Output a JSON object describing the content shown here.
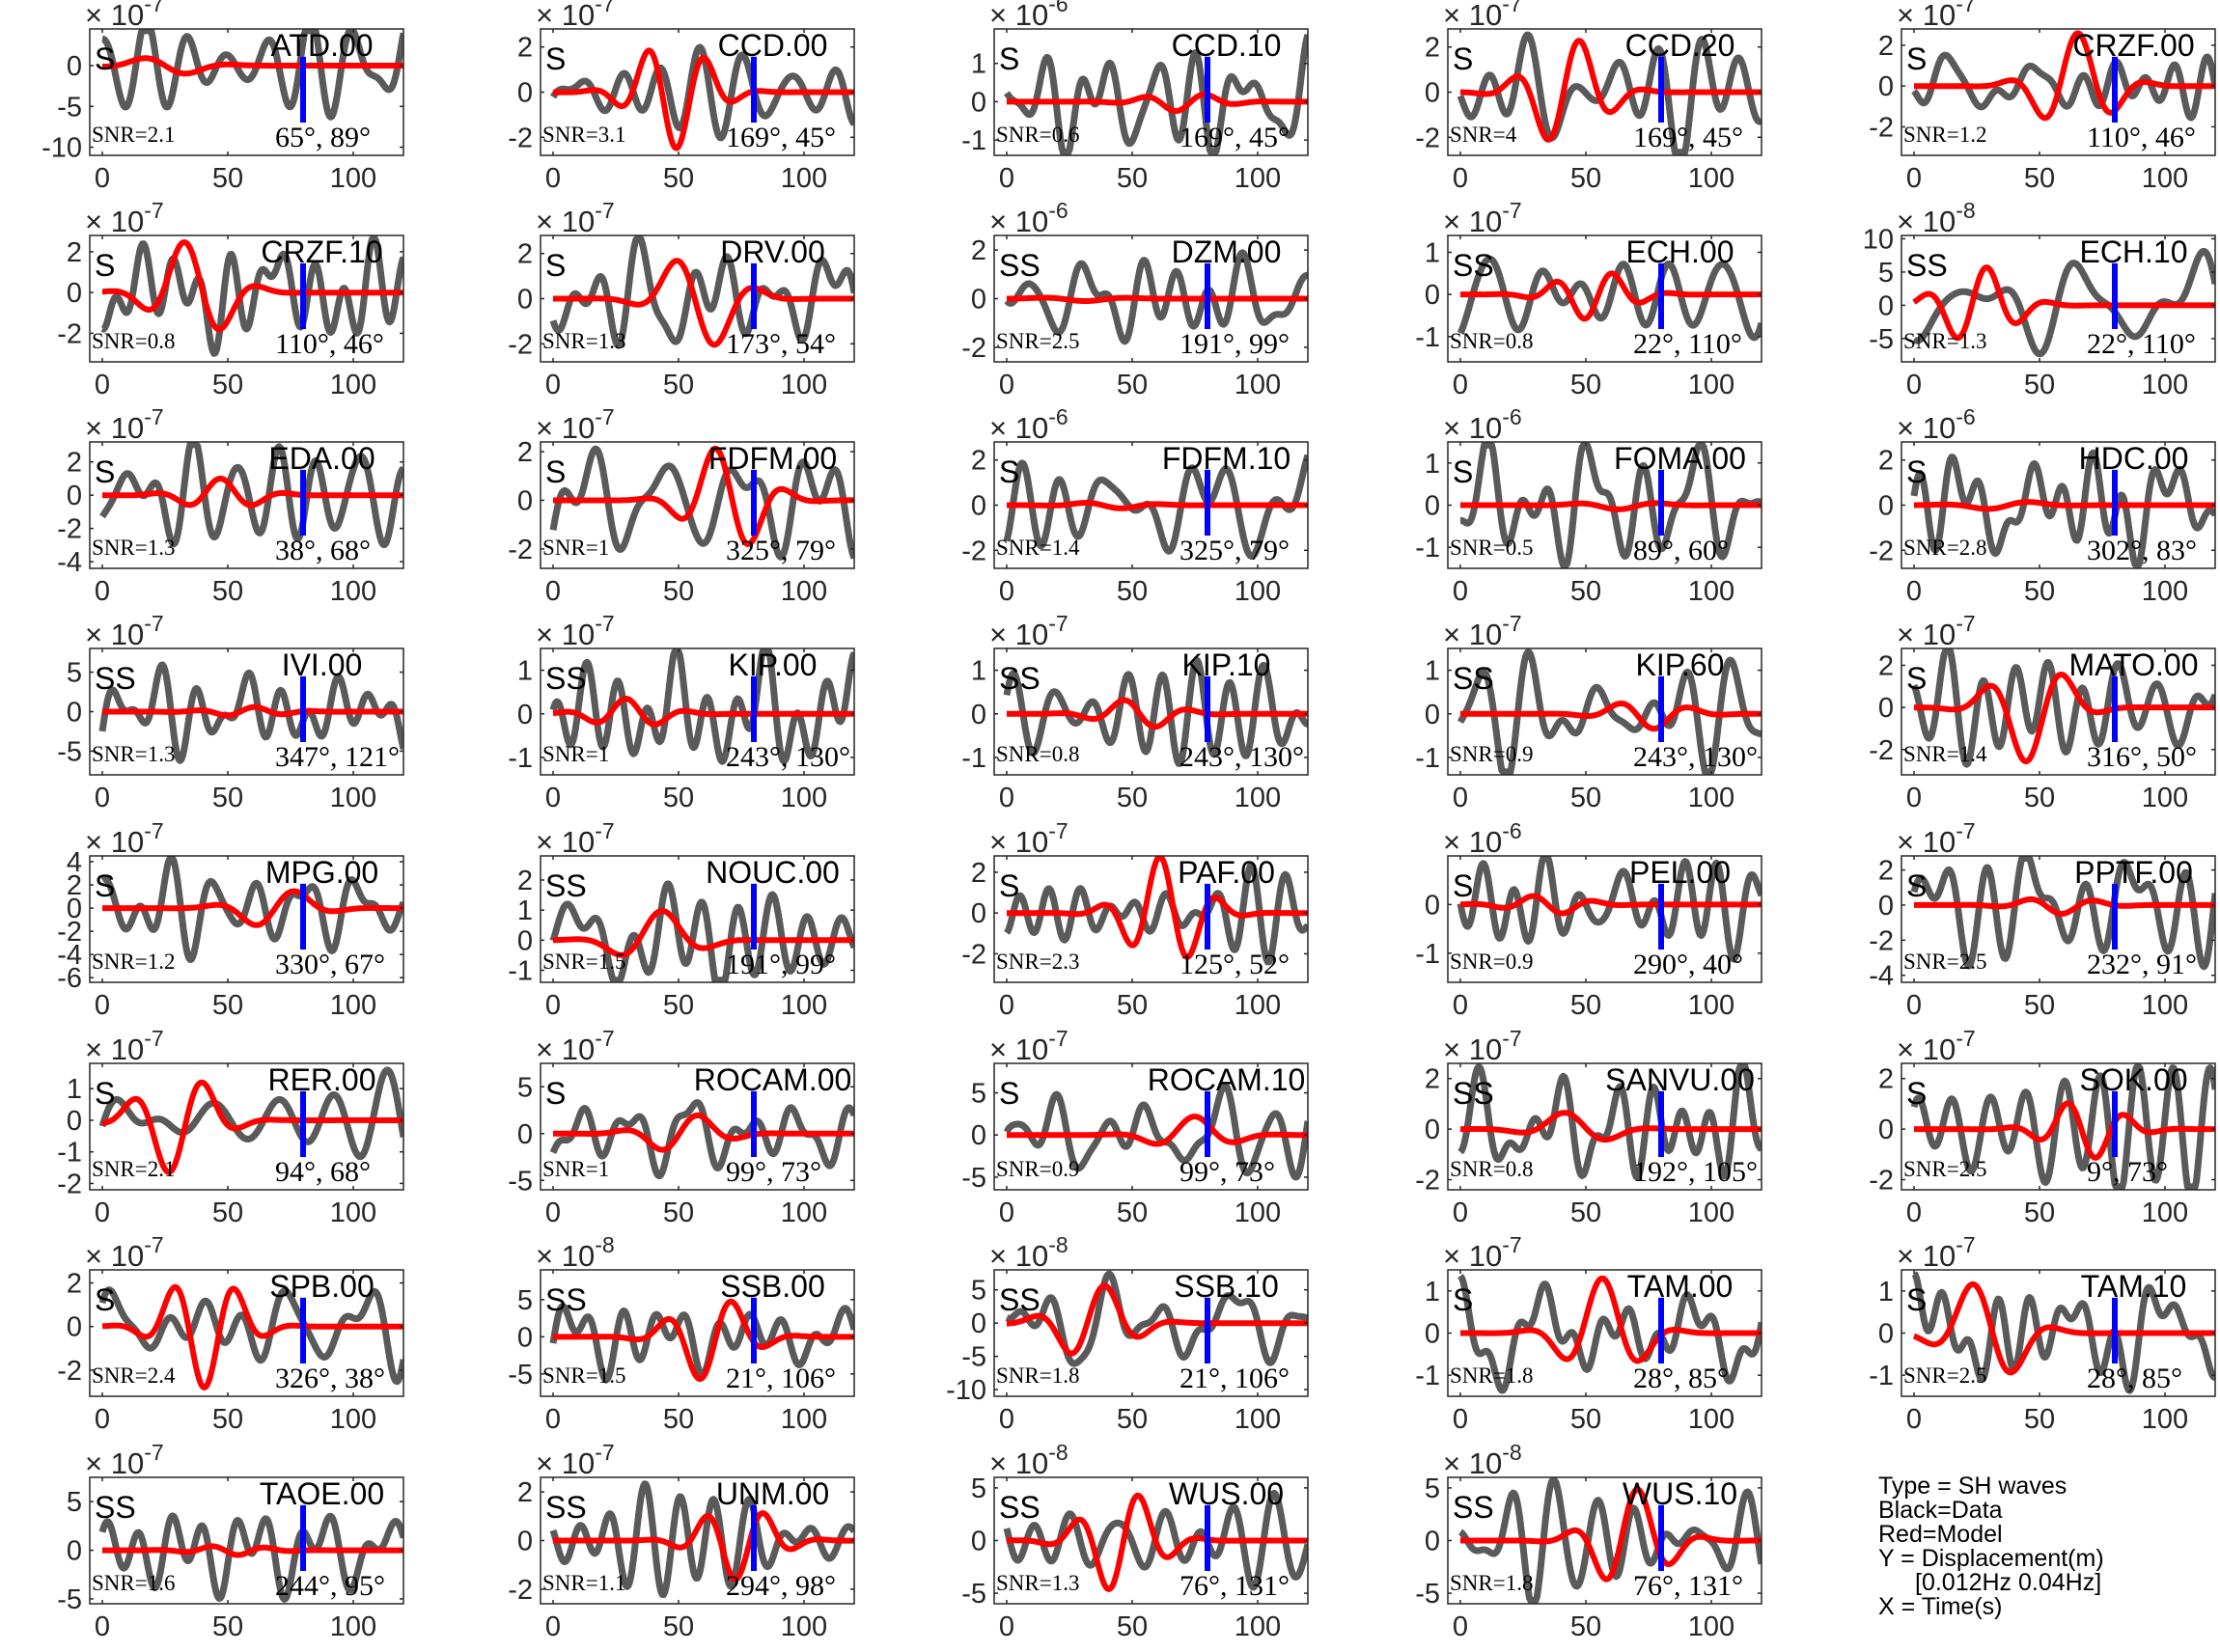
{
  "chart_data": {
    "type": "line",
    "layout": {
      "rows": 8,
      "cols": 5
    },
    "x_ticks": [
      0,
      50,
      100
    ],
    "xlim": [
      -5,
      120
    ],
    "series_legend": {
      "data": "Black=Data",
      "model": "Red=Model"
    },
    "colors": {
      "data": "#5a5a5a",
      "model": "#ff0000",
      "marker": "#0000ff",
      "axis": "#262626"
    },
    "marker_time": 80,
    "panels": [
      {
        "station": "ATD.00",
        "phase": "S",
        "snr": "SNR=2.1",
        "azdist": "65°, 89°",
        "exponent": "-7",
        "yticks": [
          "0",
          "-5",
          "-10"
        ],
        "ylim": [
          -11,
          4.5
        ],
        "data_amp": 8,
        "model_amp": 1.2,
        "seed": 1
      },
      {
        "station": "CCD.00",
        "phase": "S",
        "snr": "SNR=3.1",
        "azdist": "169°, 45°",
        "exponent": "-7",
        "yticks": [
          "2",
          "0",
          "-2"
        ],
        "ylim": [
          -2.8,
          2.8
        ],
        "data_amp": 2.2,
        "model_amp": 2.5,
        "seed": 2
      },
      {
        "station": "CCD.10",
        "phase": "S",
        "snr": "SNR=0.6",
        "azdist": "169°, 45°",
        "exponent": "-6",
        "yticks": [
          "1",
          "0",
          "-1"
        ],
        "ylim": [
          -1.4,
          1.9
        ],
        "data_amp": 1.5,
        "model_amp": 0.25,
        "seed": 3
      },
      {
        "station": "CCD.20",
        "phase": "S",
        "snr": "SNR=4",
        "azdist": "169°, 45°",
        "exponent": "-7",
        "yticks": [
          "2",
          "0",
          "-2"
        ],
        "ylim": [
          -2.8,
          2.8
        ],
        "data_amp": 2.2,
        "model_amp": 2.5,
        "seed": 4
      },
      {
        "station": "CRZF.00",
        "phase": "S",
        "snr": "SNR=1.2",
        "azdist": "110°, 46°",
        "exponent": "-7",
        "yticks": [
          "2",
          "0",
          "-2"
        ],
        "ylim": [
          -3.4,
          2.8
        ],
        "data_amp": 2.5,
        "model_amp": 2.6,
        "seed": 5
      },
      {
        "station": "CRZF.10",
        "phase": "S",
        "snr": "SNR=0.8",
        "azdist": "110°, 46°",
        "exponent": "-7",
        "yticks": [
          "2",
          "0",
          "-2"
        ],
        "ylim": [
          -3.4,
          2.8
        ],
        "data_amp": 2.5,
        "model_amp": 2.6,
        "seed": 6
      },
      {
        "station": "DRV.00",
        "phase": "S",
        "snr": "SNR=1.3",
        "azdist": "173°, 54°",
        "exponent": "-7",
        "yticks": [
          "2",
          "0",
          "-2"
        ],
        "ylim": [
          -2.8,
          2.8
        ],
        "data_amp": 2.2,
        "model_amp": 2.3,
        "seed": 7
      },
      {
        "station": "DZM.00",
        "phase": "SS",
        "snr": "SNR=2.5",
        "azdist": "191°, 99°",
        "exponent": "-6",
        "yticks": [
          "2",
          "0",
          "-2"
        ],
        "ylim": [
          -2.6,
          2.6
        ],
        "data_amp": 2.0,
        "model_amp": 0.1,
        "seed": 8
      },
      {
        "station": "ECH.00",
        "phase": "SS",
        "snr": "SNR=0.8",
        "azdist": "22°, 110°",
        "exponent": "-7",
        "yticks": [
          "1",
          "0",
          "-1"
        ],
        "ylim": [
          -1.6,
          1.4
        ],
        "data_amp": 1.1,
        "model_amp": 0.6,
        "seed": 9
      },
      {
        "station": "ECH.10",
        "phase": "SS",
        "snr": "SNR=1.3",
        "azdist": "22°, 110°",
        "exponent": "-8",
        "yticks": [
          "10",
          "5",
          "0",
          "-5"
        ],
        "ylim": [
          -8.5,
          10.5
        ],
        "data_amp": 7,
        "model_amp": 6,
        "seed": 10
      },
      {
        "station": "EDA.00",
        "phase": "S",
        "snr": "SNR=1.3",
        "azdist": "38°, 68°",
        "exponent": "-7",
        "yticks": [
          "2",
          "0",
          "-2",
          "-4"
        ],
        "ylim": [
          -4.4,
          3.2
        ],
        "data_amp": 3,
        "model_amp": 1.0,
        "seed": 11
      },
      {
        "station": "FDFM.00",
        "phase": "S",
        "snr": "SNR=1",
        "azdist": "325°, 79°",
        "exponent": "-7",
        "yticks": [
          "2",
          "0",
          "-2"
        ],
        "ylim": [
          -2.8,
          2.4
        ],
        "data_amp": 2.0,
        "model_amp": 2.3,
        "seed": 12
      },
      {
        "station": "FDFM.10",
        "phase": "S",
        "snr": "SNR=1.4",
        "azdist": "325°, 79°",
        "exponent": "-6",
        "yticks": [
          "2",
          "0",
          "-2"
        ],
        "ylim": [
          -2.8,
          2.8
        ],
        "data_amp": 2.2,
        "model_amp": 0.15,
        "seed": 13
      },
      {
        "station": "FOMA.00",
        "phase": "S",
        "snr": "SNR=0.5",
        "azdist": "89°, 60°",
        "exponent": "-6",
        "yticks": [
          "1",
          "0",
          "-1"
        ],
        "ylim": [
          -1.5,
          1.5
        ],
        "data_amp": 1.2,
        "model_amp": 0.1,
        "seed": 14
      },
      {
        "station": "HDC.00",
        "phase": "S",
        "snr": "SNR=2.8",
        "azdist": "302°, 83°",
        "exponent": "-6",
        "yticks": [
          "2",
          "0",
          "-2"
        ],
        "ylim": [
          -2.8,
          2.8
        ],
        "data_amp": 2.2,
        "model_amp": 0.2,
        "seed": 15
      },
      {
        "station": "IVI.00",
        "phase": "SS",
        "snr": "SNR=1.3",
        "azdist": "347°, 121°",
        "exponent": "-7",
        "yticks": [
          "5",
          "0",
          "-5"
        ],
        "ylim": [
          -8,
          8
        ],
        "data_amp": 6,
        "model_amp": 0.6,
        "seed": 16
      },
      {
        "station": "KIP.00",
        "phase": "SS",
        "snr": "SNR=1",
        "azdist": "243°, 130°",
        "exponent": "-7",
        "yticks": [
          "1",
          "0",
          "-1"
        ],
        "ylim": [
          -1.4,
          1.5
        ],
        "data_amp": 1.1,
        "model_amp": 0.35,
        "seed": 17
      },
      {
        "station": "KIP.10",
        "phase": "SS",
        "snr": "SNR=0.8",
        "azdist": "243°, 130°",
        "exponent": "-7",
        "yticks": [
          "1",
          "0",
          "-1"
        ],
        "ylim": [
          -1.4,
          1.5
        ],
        "data_amp": 1.1,
        "model_amp": 0.35,
        "seed": 18
      },
      {
        "station": "KIP.60",
        "phase": "SS",
        "snr": "SNR=0.9",
        "azdist": "243°, 130°",
        "exponent": "-7",
        "yticks": [
          "1",
          "0",
          "-1"
        ],
        "ylim": [
          -1.4,
          1.5
        ],
        "data_amp": 1.1,
        "model_amp": 0.35,
        "seed": 19
      },
      {
        "station": "MATO.00",
        "phase": "S",
        "snr": "SNR=1.4",
        "azdist": "316°, 50°",
        "exponent": "-7",
        "yticks": [
          "2",
          "0",
          "-2"
        ],
        "ylim": [
          -3.2,
          2.8
        ],
        "data_amp": 2.4,
        "model_amp": 2.6,
        "seed": 20
      },
      {
        "station": "MPG.00",
        "phase": "S",
        "snr": "SNR=1.2",
        "azdist": "330°, 67°",
        "exponent": "-7",
        "yticks": [
          "4",
          "2",
          "0",
          "-2",
          "-4",
          "-6"
        ],
        "ylim": [
          -6.4,
          4.5
        ],
        "data_amp": 4,
        "model_amp": 1.8,
        "seed": 21
      },
      {
        "station": "NOUC.00",
        "phase": "SS",
        "snr": "SNR=1.5",
        "azdist": "191°, 99°",
        "exponent": "-7",
        "yticks": [
          "2",
          "1",
          "0",
          "-1"
        ],
        "ylim": [
          -1.4,
          2.8
        ],
        "data_amp": 1.5,
        "model_amp": 1.0,
        "seed": 22
      },
      {
        "station": "PAF.00",
        "phase": "S",
        "snr": "SNR=2.3",
        "azdist": "125°, 52°",
        "exponent": "-7",
        "yticks": [
          "2",
          "0",
          "-2"
        ],
        "ylim": [
          -3.4,
          2.8
        ],
        "data_amp": 2.4,
        "model_amp": 2.8,
        "seed": 23
      },
      {
        "station": "PEL.00",
        "phase": "S",
        "snr": "SNR=0.9",
        "azdist": "290°, 40°",
        "exponent": "-6",
        "yticks": [
          "0",
          "-1"
        ],
        "ylim": [
          -1.6,
          1.0
        ],
        "data_amp": 0.9,
        "model_amp": 0.2,
        "seed": 24
      },
      {
        "station": "PPTF.00",
        "phase": "S",
        "snr": "SNR=2.5",
        "azdist": "232°, 91°",
        "exponent": "-7",
        "yticks": [
          "2",
          "0",
          "-2",
          "-4"
        ],
        "ylim": [
          -4.4,
          2.8
        ],
        "data_amp": 3,
        "model_amp": 0.5,
        "seed": 25
      },
      {
        "station": "RER.00",
        "phase": "S",
        "snr": "SNR=2.1",
        "azdist": "94°, 68°",
        "exponent": "-7",
        "yticks": [
          "1",
          "0",
          "-1",
          "-2"
        ],
        "ylim": [
          -2.2,
          1.8
        ],
        "data_amp": 1.6,
        "model_amp": 1.7,
        "seed": 26
      },
      {
        "station": "ROCAM.00",
        "phase": "S",
        "snr": "SNR=1",
        "azdist": "99°, 73°",
        "exponent": "-7",
        "yticks": [
          "5",
          "0",
          "-5"
        ],
        "ylim": [
          -6,
          7.5
        ],
        "data_amp": 5,
        "model_amp": 2.2,
        "seed": 27
      },
      {
        "station": "ROCAM.10",
        "phase": "S",
        "snr": "SNR=0.9",
        "azdist": "99°, 73°",
        "exponent": "-7",
        "yticks": [
          "5",
          "0",
          "-5"
        ],
        "ylim": [
          -6.5,
          8.5
        ],
        "data_amp": 5,
        "model_amp": 2.2,
        "seed": 28
      },
      {
        "station": "SANVU.00",
        "phase": "SS",
        "snr": "SNR=0.8",
        "azdist": "192°, 105°",
        "exponent": "-7",
        "yticks": [
          "2",
          "0",
          "-2"
        ],
        "ylim": [
          -2.4,
          2.6
        ],
        "data_amp": 2.0,
        "model_amp": 0.7,
        "seed": 29
      },
      {
        "station": "SOK.00",
        "phase": "S",
        "snr": "SNR=2.5",
        "azdist": "9°, 73°",
        "exponent": "-7",
        "yticks": [
          "2",
          "0",
          "-2"
        ],
        "ylim": [
          -2.4,
          2.6
        ],
        "data_amp": 2.0,
        "model_amp": 1.2,
        "seed": 30
      },
      {
        "station": "SPB.00",
        "phase": "S",
        "snr": "SNR=2.4",
        "azdist": "326°, 38°",
        "exponent": "-7",
        "yticks": [
          "2",
          "0",
          "-2"
        ],
        "ylim": [
          -3.2,
          2.6
        ],
        "data_amp": 2.2,
        "model_amp": 2.8,
        "seed": 31
      },
      {
        "station": "SSB.00",
        "phase": "SS",
        "snr": "SNR=1.5",
        "azdist": "21°, 106°",
        "exponent": "-8",
        "yticks": [
          "5",
          "0",
          "-5"
        ],
        "ylim": [
          -8,
          9
        ],
        "data_amp": 6.5,
        "model_amp": 6,
        "seed": 32
      },
      {
        "station": "SSB.10",
        "phase": "SS",
        "snr": "SNR=1.8",
        "azdist": "21°, 106°",
        "exponent": "-8",
        "yticks": [
          "5",
          "0",
          "-5",
          "-10"
        ],
        "ylim": [
          -11,
          8
        ],
        "data_amp": 7,
        "model_amp": 6,
        "seed": 33
      },
      {
        "station": "TAM.00",
        "phase": "S",
        "snr": "SNR=1.8",
        "azdist": "28°, 85°",
        "exponent": "-7",
        "yticks": [
          "1",
          "0",
          "-1"
        ],
        "ylim": [
          -1.5,
          1.5
        ],
        "data_amp": 1.2,
        "model_amp": 1.3,
        "seed": 34
      },
      {
        "station": "TAM.10",
        "phase": "S",
        "snr": "SNR=2.5",
        "azdist": "28°, 85°",
        "exponent": "-7",
        "yticks": [
          "1",
          "0",
          "-1"
        ],
        "ylim": [
          -1.5,
          1.5
        ],
        "data_amp": 1.2,
        "model_amp": 1.3,
        "seed": 35
      },
      {
        "station": "TAOE.00",
        "phase": "SS",
        "snr": "SNR=1.6",
        "azdist": "244°, 95°",
        "exponent": "-7",
        "yticks": [
          "5",
          "0",
          "-5"
        ],
        "ylim": [
          -5.5,
          7.5
        ],
        "data_amp": 5.5,
        "model_amp": 0.5,
        "seed": 36
      },
      {
        "station": "UNM.00",
        "phase": "SS",
        "snr": "SNR=1.1",
        "azdist": "294°, 98°",
        "exponent": "-7",
        "yticks": [
          "2",
          "0",
          "-2"
        ],
        "ylim": [
          -2.6,
          2.6
        ],
        "data_amp": 2.0,
        "model_amp": 1.6,
        "seed": 37
      },
      {
        "station": "WUS.00",
        "phase": "SS",
        "snr": "SNR=1.3",
        "azdist": "76°, 131°",
        "exponent": "-8",
        "yticks": [
          "5",
          "0",
          "-5"
        ],
        "ylim": [
          -6,
          6
        ],
        "data_amp": 4.5,
        "model_amp": 5,
        "seed": 38
      },
      {
        "station": "WUS.10",
        "phase": "SS",
        "snr": "SNR=1.8",
        "azdist": "76°, 131°",
        "exponent": "-8",
        "yticks": [
          "5",
          "0",
          "-5"
        ],
        "ylim": [
          -6,
          6
        ],
        "data_amp": 4.5,
        "model_amp": 5,
        "seed": 39
      }
    ]
  },
  "legend": {
    "type": "Type = SH waves",
    "black": "Black=Data",
    "red": "Red=Model",
    "y": "Y = Displacement(m)",
    "band": "[0.012Hz 0.04Hz]",
    "x": "X = Time(s)"
  }
}
